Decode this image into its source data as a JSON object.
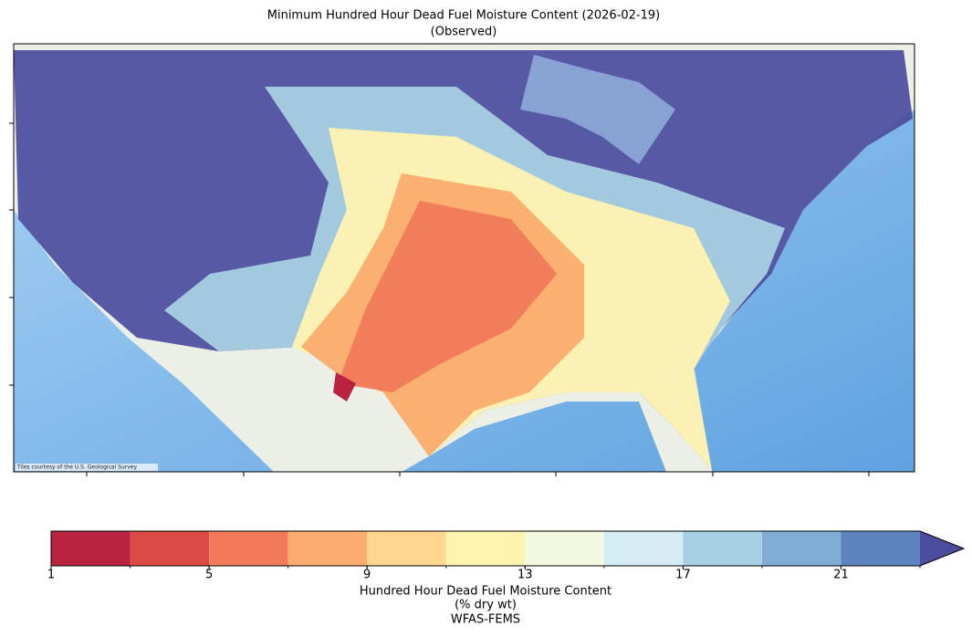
{
  "map": {
    "title": [
      "Minimum Hundred Hour Dead Fuel Moisture Content (2026-02-19)",
      "(Observed)"
    ],
    "attribution": "Tiles courtesy of the U.S. Geological Survey"
  },
  "colorbar": {
    "label": [
      "Hundred Hour Dead Fuel Moisture Content",
      "(% dry wt)",
      "WFAS-FEMS"
    ],
    "boundaries": [
      1,
      3,
      5,
      7,
      9,
      11,
      13,
      15,
      17,
      19,
      21,
      23
    ],
    "colors": [
      "#b8243f",
      "#dc4a45",
      "#f07a5a",
      "#fbac6e",
      "#fed690",
      "#fff3b0",
      "#f2f9df",
      "#d4ecf3",
      "#a8d0e3",
      "#7fadd3",
      "#5e84bf"
    ],
    "extend_color": "#4b4c9e",
    "ticks": [
      1,
      5,
      9,
      13,
      17,
      21
    ]
  }
}
